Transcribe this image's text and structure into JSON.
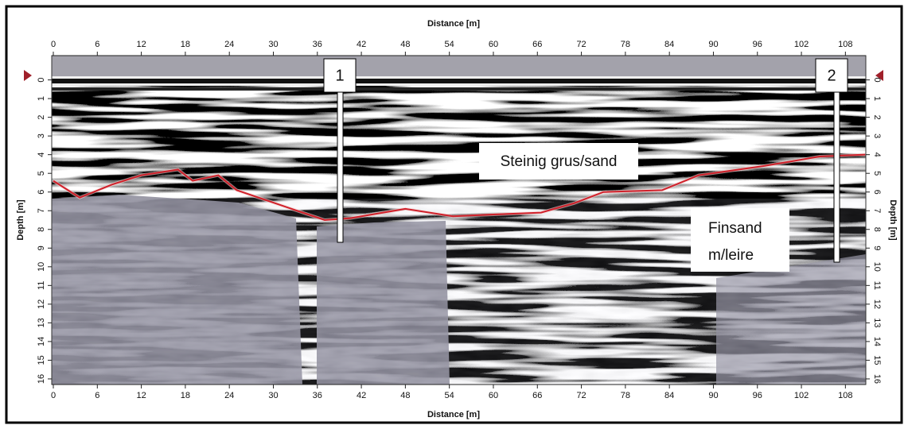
{
  "chart_data": {
    "type": "line",
    "xlabel": "Distance [m]",
    "ylabel": "Depth [m]",
    "x": [
      0,
      3.6,
      8,
      12,
      17,
      19,
      22.5,
      25,
      31,
      37,
      40.5,
      48,
      54.5,
      60,
      66.5,
      71,
      75,
      83,
      88,
      97,
      104.5,
      110.7
    ],
    "series": [
      {
        "color": "#d0202a",
        "values": [
          5.4,
          6.3,
          5.6,
          5.1,
          4.8,
          5.4,
          5.1,
          5.9,
          6.7,
          7.5,
          7.4,
          6.9,
          7.3,
          7.2,
          7.1,
          6.6,
          6.0,
          5.9,
          5.1,
          4.6,
          4.1,
          4.0
        ]
      }
    ],
    "xlim": [
      0,
      111
    ],
    "xticks": [
      0,
      6,
      12,
      18,
      24,
      30,
      36,
      42,
      48,
      54,
      60,
      66,
      72,
      78,
      84,
      90,
      96,
      102,
      108
    ],
    "ylim": [
      -1.3,
      16.3
    ],
    "yticks": [
      0,
      1,
      2,
      3,
      4,
      5,
      6,
      7,
      8,
      9,
      10,
      11,
      12,
      13,
      14,
      15,
      16
    ],
    "y_inverted": true,
    "annotations": [
      "1",
      "2",
      "Steinig grus/sand",
      "Finsand",
      "m/leire"
    ]
  }
}
